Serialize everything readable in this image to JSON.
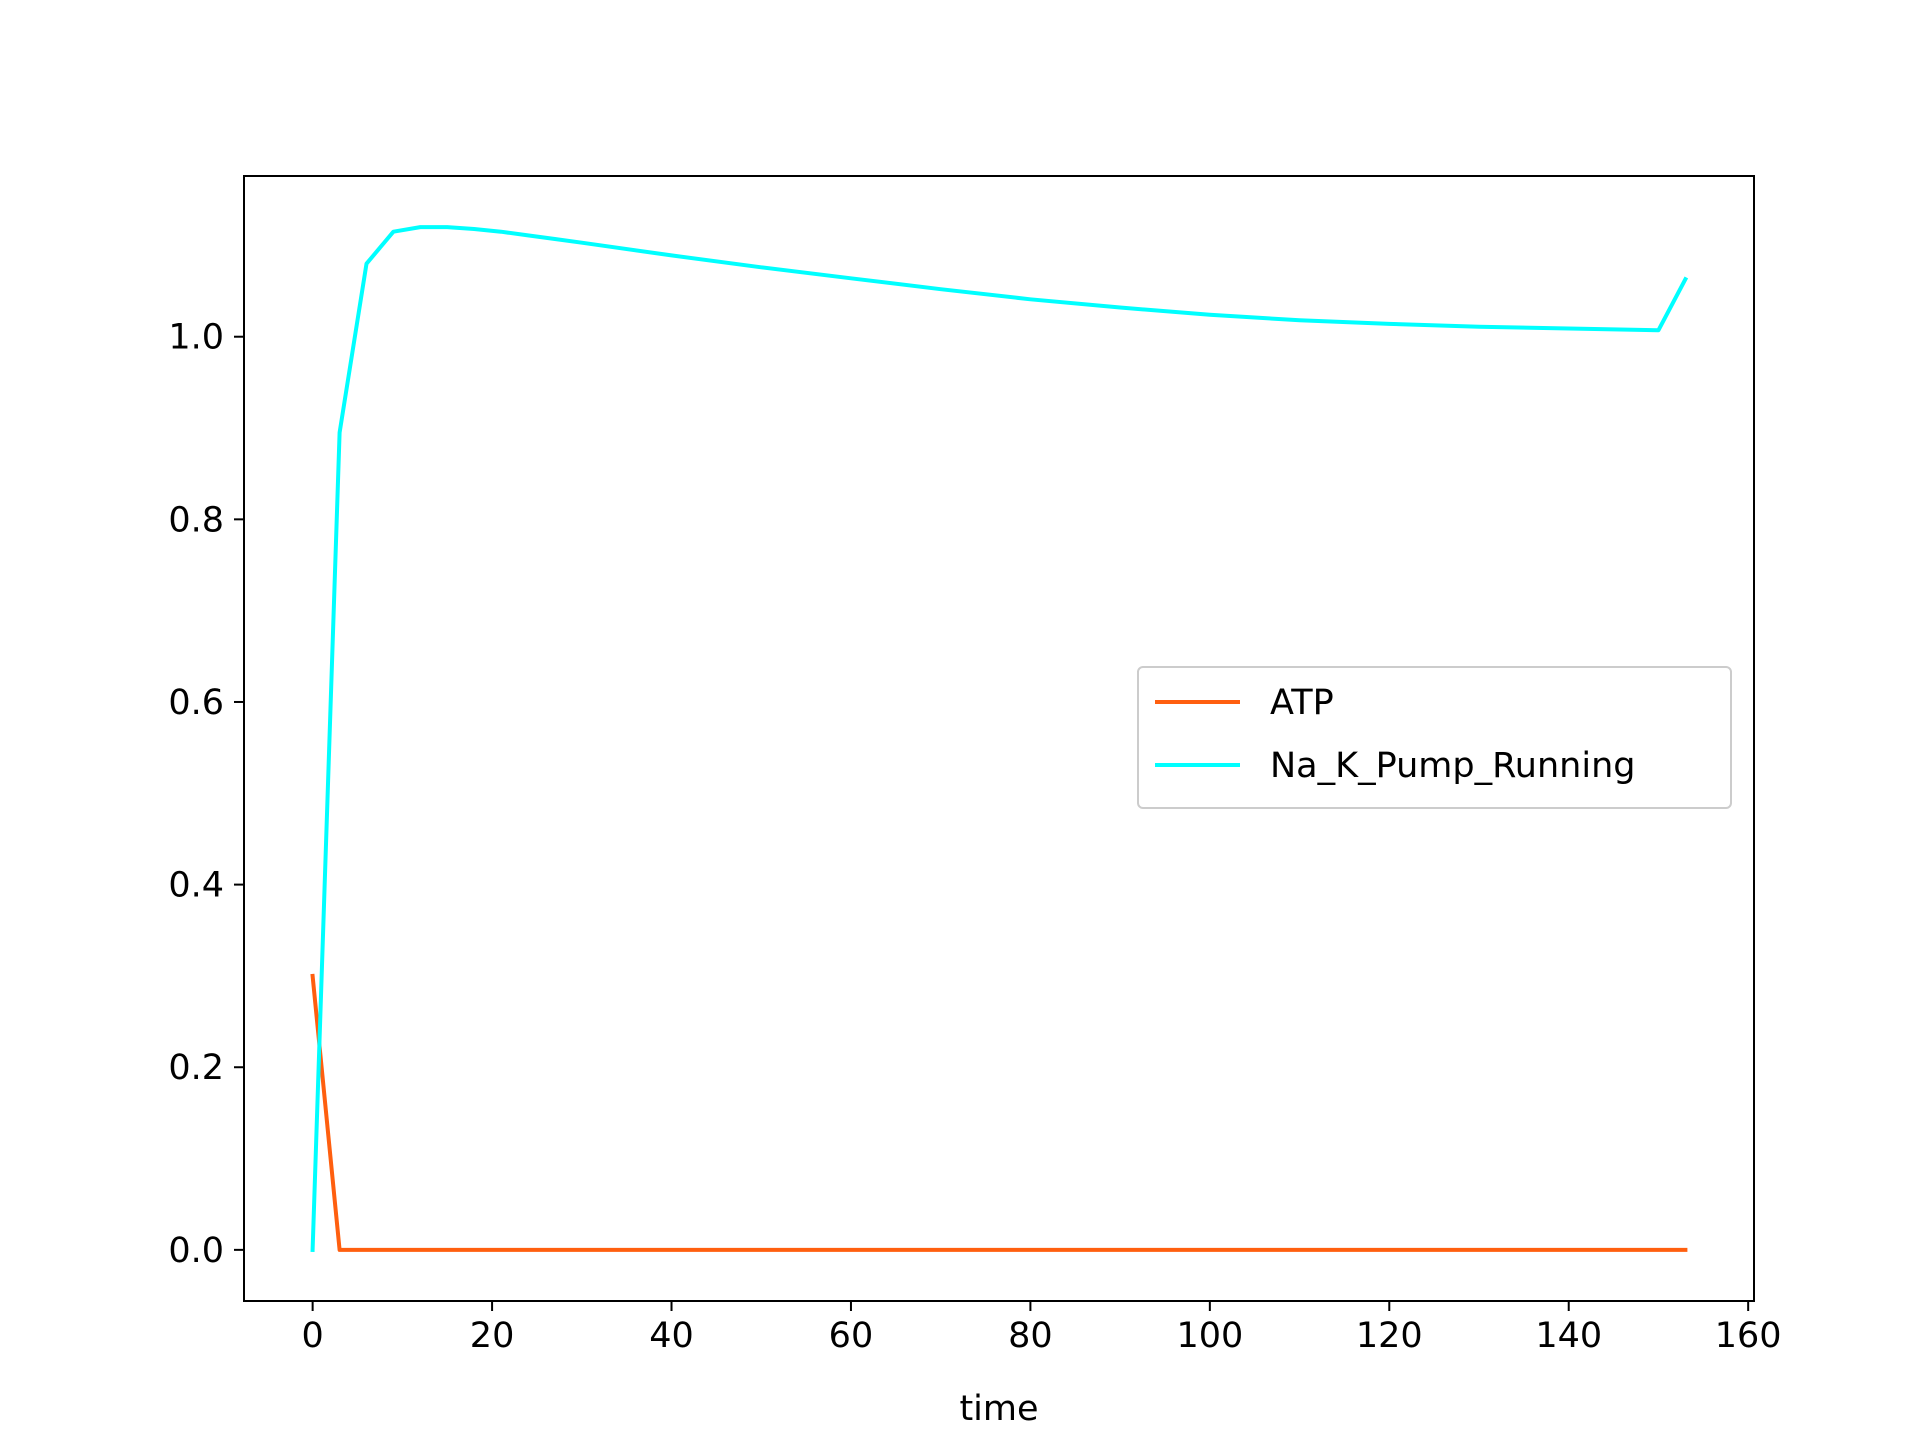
{
  "chart_data": {
    "type": "line",
    "title": "",
    "xlabel": "time",
    "ylabel": "",
    "xlim": [
      -7.65,
      160.65
    ],
    "ylim": [
      -0.056,
      1.176
    ],
    "xticks": [
      0,
      20,
      40,
      60,
      80,
      100,
      120,
      140,
      160
    ],
    "xtick_labels": [
      "0",
      "20",
      "40",
      "60",
      "80",
      "100",
      "120",
      "140",
      "160"
    ],
    "yticks": [
      0.0,
      0.2,
      0.4,
      0.6,
      0.8,
      1.0
    ],
    "ytick_labels": [
      "0.0",
      "0.2",
      "0.4",
      "0.6",
      "0.8",
      "1.0"
    ],
    "grid": false,
    "legend": {
      "placement": "center-right"
    },
    "series": [
      {
        "name": "ATP",
        "color": "#ff5f0f",
        "x": [
          0,
          3,
          6,
          9,
          12,
          15,
          30,
          60,
          90,
          120,
          150,
          153
        ],
        "y": [
          0.3,
          0.0,
          0.0,
          0.0,
          0.0,
          0.0,
          0.0,
          0.0,
          0.0,
          0.0,
          0.0,
          0.0
        ]
      },
      {
        "name": "Na_K_Pump_Running",
        "color": "#00ffff",
        "x": [
          0,
          3,
          6,
          9,
          12,
          15,
          18,
          21,
          24,
          27,
          30,
          40,
          50,
          60,
          70,
          80,
          90,
          100,
          110,
          120,
          130,
          140,
          150,
          153
        ],
        "y": [
          0.0,
          0.895,
          1.08,
          1.115,
          1.12,
          1.12,
          1.118,
          1.115,
          1.111,
          1.107,
          1.103,
          1.089,
          1.076,
          1.064,
          1.052,
          1.041,
          1.032,
          1.024,
          1.018,
          1.014,
          1.011,
          1.009,
          1.007,
          1.063
        ]
      }
    ]
  }
}
